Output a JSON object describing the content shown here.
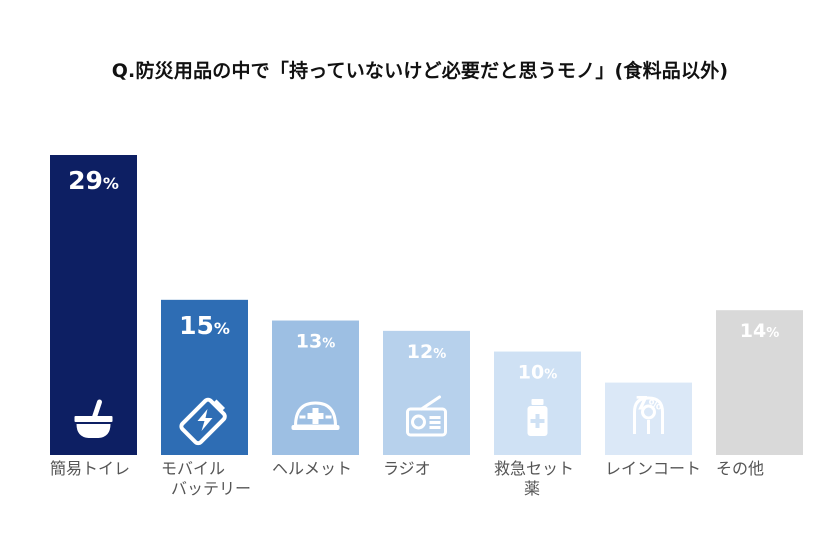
{
  "chart_data": {
    "type": "bar",
    "title": "Q.防災用品の中で「持っていないけど必要だと思うモノ」(食料品以外)",
    "categories": [
      "簡易トイレ",
      "モバイル\nバッテリー",
      "ヘルメット",
      "ラジオ",
      "救急セット\n薬",
      "レインコート",
      "その他"
    ],
    "values": [
      29,
      15,
      13,
      12,
      10,
      7,
      14
    ],
    "value_suffix": "%",
    "bar_colors": [
      "#0d1f63",
      "#2e6db4",
      "#9dbfe3",
      "#b7d1ec",
      "#cfe1f4",
      "#dbe8f7",
      "#d9d9d9"
    ],
    "icons": [
      "toilet-icon",
      "battery-icon",
      "helmet-icon",
      "radio-icon",
      "medicine-icon",
      "raincoat-icon",
      ""
    ],
    "ylim": [
      0,
      29
    ],
    "xlabel": "",
    "ylabel": "",
    "grid": false,
    "legend": "none"
  }
}
